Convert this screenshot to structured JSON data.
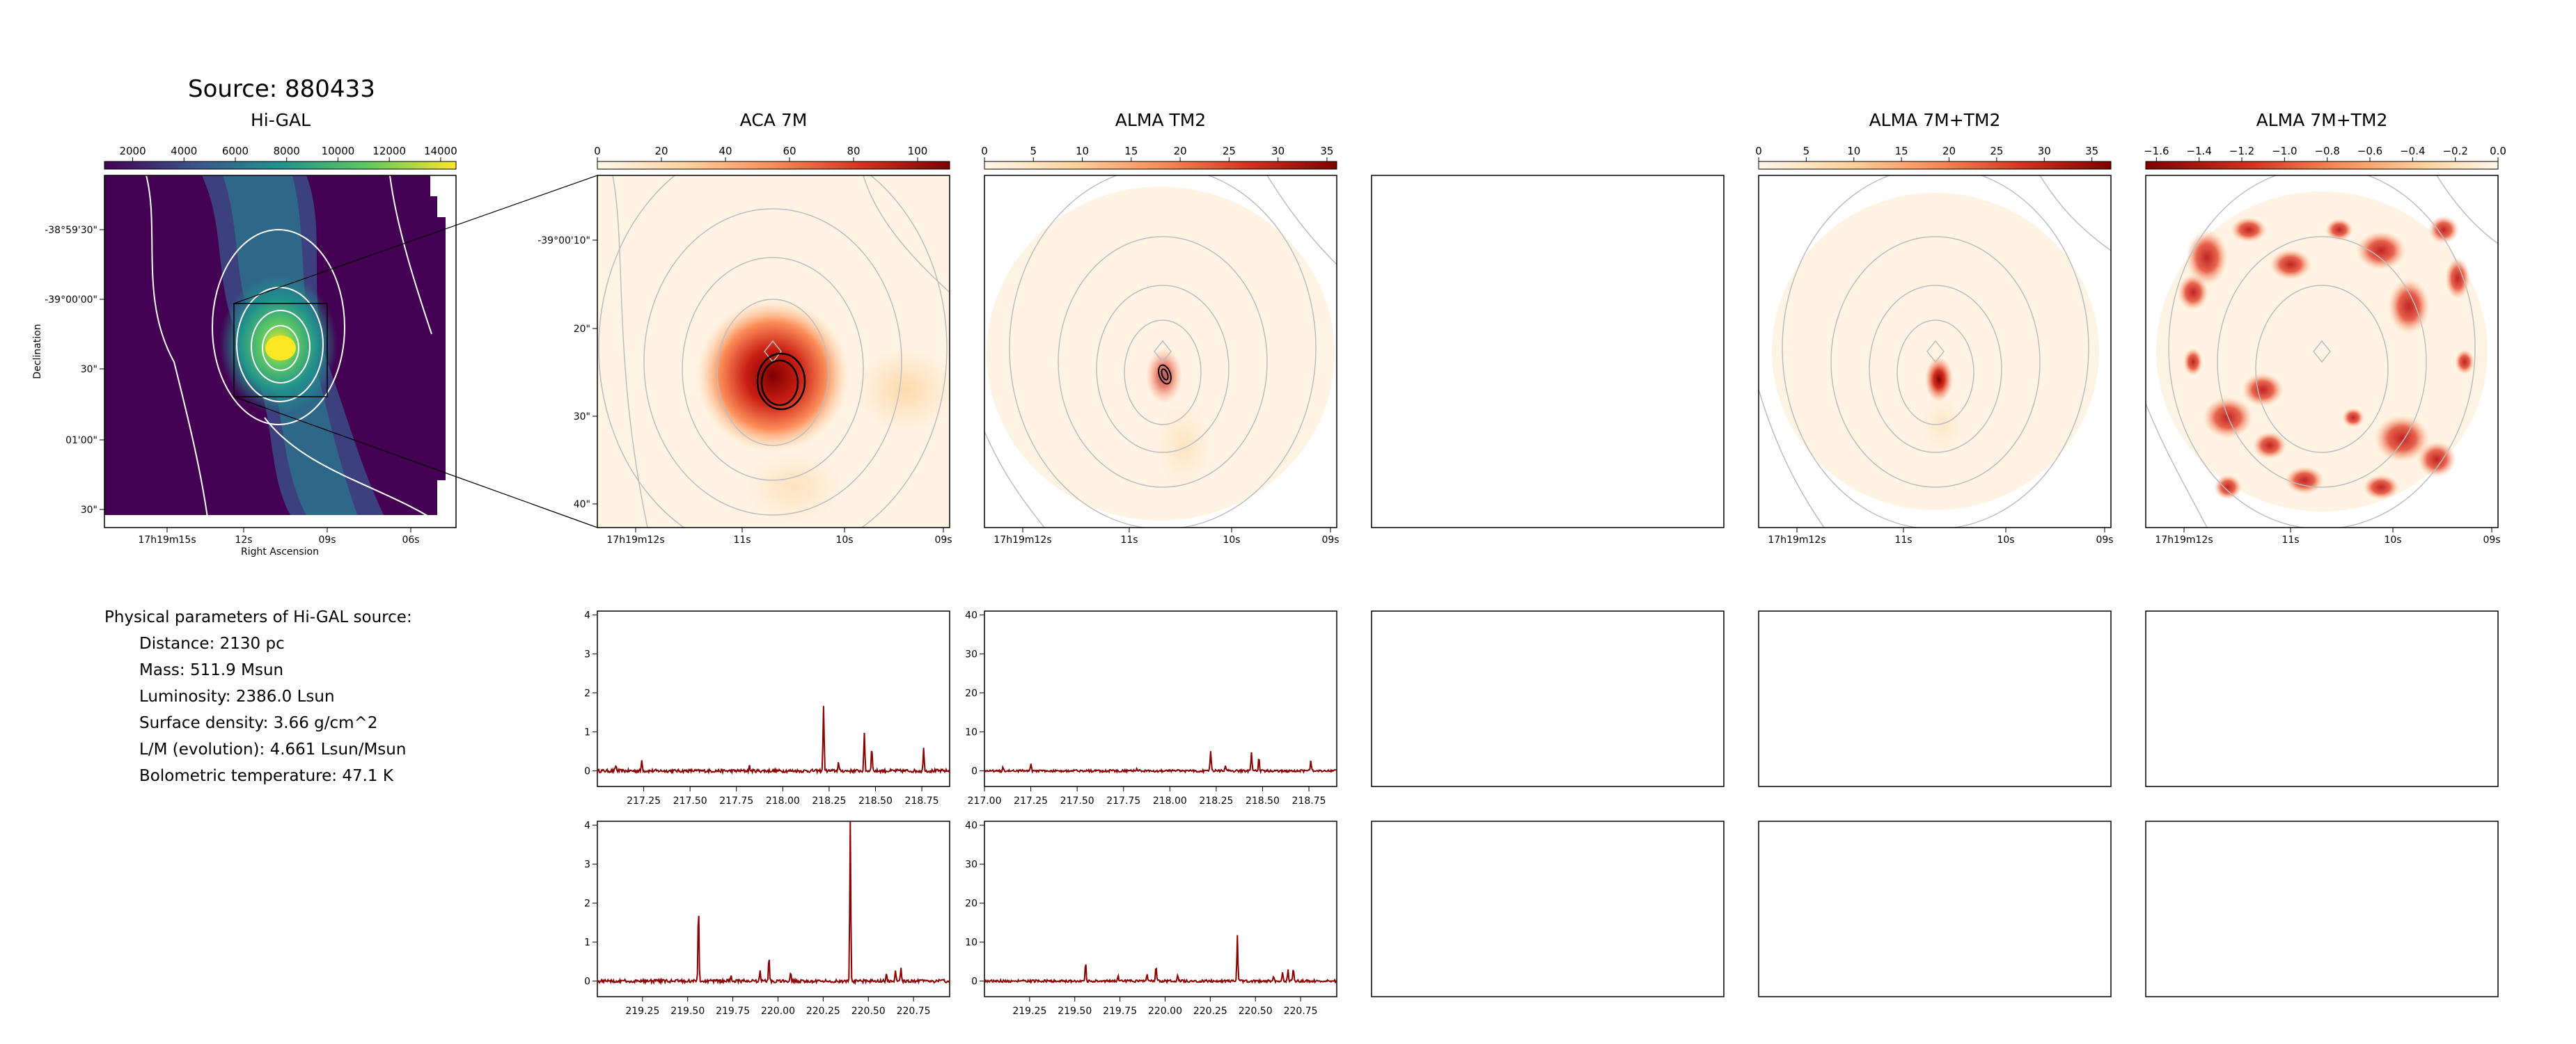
{
  "source_title": "Source: 880433",
  "physical": {
    "heading": "Physical parameters of Hi-GAL source:",
    "lines": [
      "Distance: 2130 pc",
      "Mass: 511.9 Msun",
      "Luminosity: 2386.0 Lsun",
      "Surface density: 3.66 g/cm^2",
      "L/M (evolution): 4.661 Lsun/Msun",
      "Bolometric temperature: 47.1 K"
    ]
  },
  "colors": {
    "viridis": [
      "#440154",
      "#3b528b",
      "#21918c",
      "#5ec962",
      "#fde725"
    ],
    "orrd": [
      "#fff7ec",
      "#fdd49e",
      "#fc8d59",
      "#d7301f",
      "#7f0000"
    ],
    "spectrum_line": "#8b0000",
    "contour": "#b0b0b0"
  },
  "chart_data": [
    {
      "type": "heatmap",
      "title": "Hi-GAL",
      "colormap": "viridis",
      "colorbar_ticks": [
        "2000",
        "4000",
        "6000",
        "8000",
        "10000",
        "12000",
        "14000"
      ],
      "colorbar_range": [
        900,
        14600
      ],
      "xlabel": "Right Ascension",
      "ylabel": "Declination",
      "xticks": [
        "17h19m15s",
        "12s",
        "09s",
        "06s"
      ],
      "yticks": [
        "-38°59'30\"",
        "-39°00'00\"",
        "30\"",
        "01'00\"",
        "30\""
      ]
    },
    {
      "type": "heatmap",
      "title": "ACA 7M",
      "colormap": "OrRd",
      "colorbar_ticks": [
        "0",
        "20",
        "40",
        "60",
        "80",
        "100"
      ],
      "colorbar_range": [
        0,
        110
      ],
      "xticks": [
        "17h19m12s",
        "11s",
        "10s",
        "09s"
      ],
      "yticks": [
        "-39°00'10\"",
        "20\"",
        "30\"",
        "40\""
      ]
    },
    {
      "type": "heatmap",
      "title": "ALMA TM2",
      "colormap": "OrRd",
      "colorbar_ticks": [
        "0",
        "5",
        "10",
        "15",
        "20",
        "25",
        "30",
        "35"
      ],
      "colorbar_range": [
        0,
        36
      ],
      "xticks": [
        "17h19m12s",
        "11s",
        "10s",
        "09s"
      ]
    },
    {
      "type": "heatmap",
      "title": "ALMA 7M+TM2",
      "colormap": "OrRd",
      "colorbar_ticks": [
        "0",
        "5",
        "10",
        "15",
        "20",
        "25",
        "30",
        "35"
      ],
      "colorbar_range": [
        0,
        37
      ],
      "xticks": [
        "17h19m12s",
        "11s",
        "10s",
        "09s"
      ]
    },
    {
      "type": "heatmap",
      "title": "ALMA 7M+TM2",
      "colormap": "OrRd",
      "colorbar_ticks": [
        "−1.6",
        "−1.4",
        "−1.2",
        "−1.0",
        "−0.8",
        "−0.6",
        "−0.4",
        "−0.2",
        "0.0"
      ],
      "colorbar_range": [
        -1.65,
        0.0
      ],
      "xticks": [
        "17h19m12s",
        "11s",
        "10s",
        "09s"
      ]
    },
    {
      "type": "line",
      "name": "spec_aca_1",
      "xlim": [
        217.0,
        218.9
      ],
      "ylim": [
        -0.4,
        4.1
      ],
      "xticks": [
        "217.25",
        "217.50",
        "217.75",
        "218.00",
        "218.25",
        "218.50",
        "218.75"
      ],
      "yticks": [
        "0",
        "1",
        "2",
        "3",
        "4"
      ],
      "noise": 0.04,
      "peaks": [
        [
          217.1,
          0.15
        ],
        [
          217.24,
          0.28
        ],
        [
          217.82,
          0.12
        ],
        [
          218.22,
          1.7
        ],
        [
          218.3,
          0.22
        ],
        [
          218.44,
          0.95
        ],
        [
          218.48,
          0.65
        ],
        [
          218.76,
          0.58
        ]
      ]
    },
    {
      "type": "line",
      "name": "spec_tm2_1",
      "xlim": [
        217.0,
        218.9
      ],
      "ylim": [
        -4,
        41
      ],
      "xticks": [
        "217.00",
        "217.25",
        "217.50",
        "217.75",
        "218.00",
        "218.25",
        "218.50",
        "218.75"
      ],
      "yticks": [
        "0",
        "10",
        "20",
        "30",
        "40"
      ],
      "noise": 0.3,
      "peaks": [
        [
          217.1,
          1.2
        ],
        [
          217.25,
          2.0
        ],
        [
          217.82,
          0.6
        ],
        [
          218.22,
          5.3
        ],
        [
          218.3,
          1.4
        ],
        [
          218.44,
          4.6
        ],
        [
          218.48,
          3.3
        ],
        [
          218.76,
          2.6
        ]
      ]
    },
    {
      "type": "line",
      "name": "spec_aca_2",
      "xlim": [
        219.0,
        220.95
      ],
      "ylim": [
        -0.4,
        4.1
      ],
      "xticks": [
        "219.25",
        "219.50",
        "219.75",
        "220.00",
        "220.25",
        "220.50",
        "220.75"
      ],
      "yticks": [
        "0",
        "1",
        "2",
        "3",
        "4"
      ],
      "noise": 0.04,
      "peaks": [
        [
          219.56,
          1.95
        ],
        [
          219.74,
          0.18
        ],
        [
          219.9,
          0.25
        ],
        [
          219.95,
          0.62
        ],
        [
          220.07,
          0.25
        ],
        [
          220.4,
          4.1
        ],
        [
          220.6,
          0.22
        ],
        [
          220.65,
          0.3
        ],
        [
          220.68,
          0.35
        ]
      ]
    },
    {
      "type": "line",
      "name": "spec_tm2_2",
      "xlim": [
        219.0,
        220.95
      ],
      "ylim": [
        -4,
        41
      ],
      "xticks": [
        "219.25",
        "219.50",
        "219.75",
        "220.00",
        "220.25",
        "220.50",
        "220.75"
      ],
      "yticks": [
        "0",
        "10",
        "20",
        "30",
        "40"
      ],
      "noise": 0.3,
      "peaks": [
        [
          219.56,
          5.3
        ],
        [
          219.74,
          1.2
        ],
        [
          219.9,
          2.0
        ],
        [
          219.95,
          4.0
        ],
        [
          220.07,
          1.8
        ],
        [
          220.4,
          12.0
        ],
        [
          220.6,
          1.4
        ],
        [
          220.65,
          2.2
        ],
        [
          220.68,
          3.0
        ],
        [
          220.71,
          3.3
        ]
      ]
    }
  ]
}
